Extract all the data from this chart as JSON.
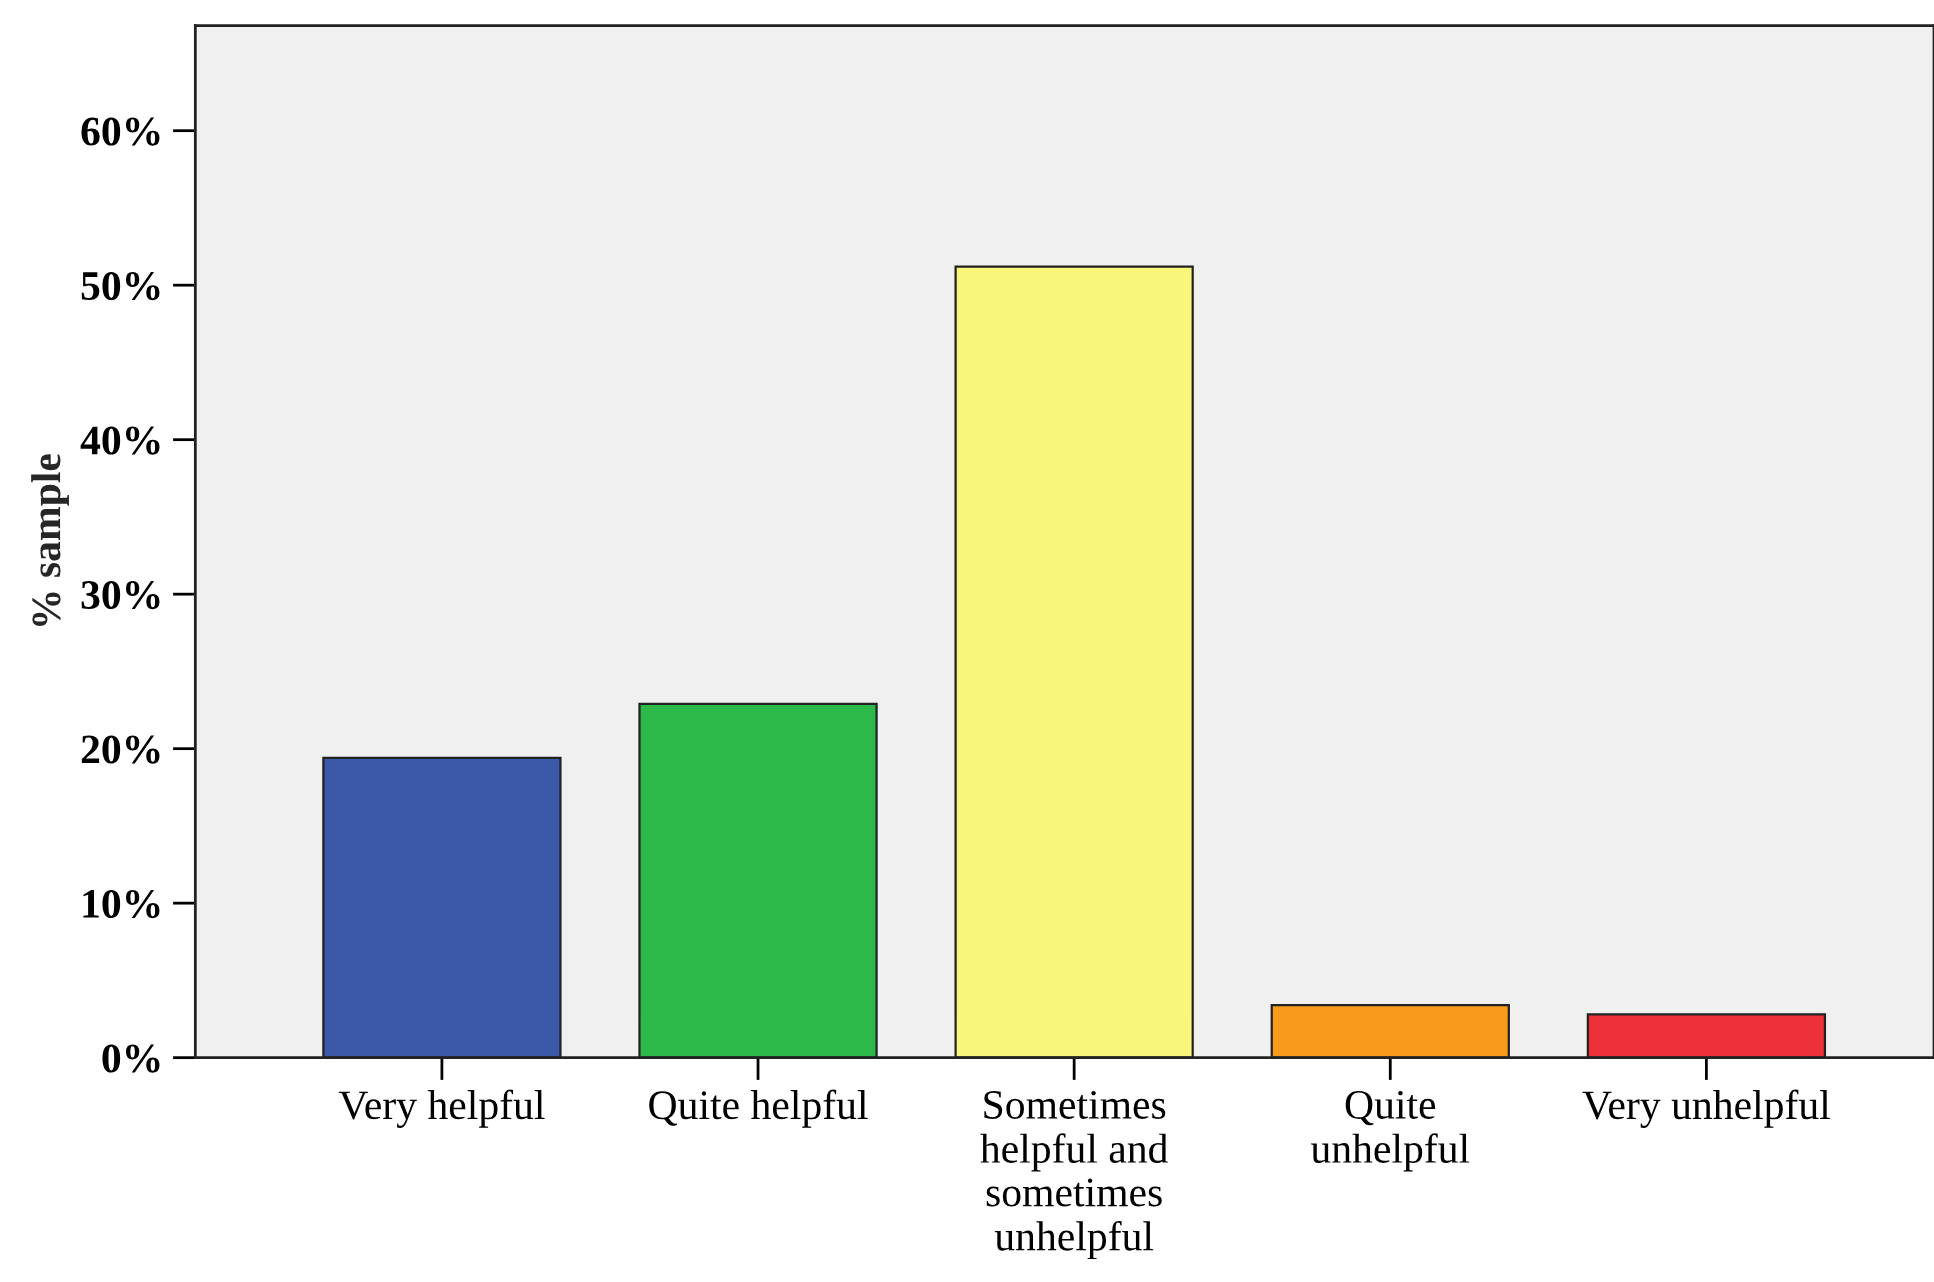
{
  "chart_data": {
    "type": "bar",
    "ylabel": "% sample",
    "categories": [
      "Very helpful",
      "Quite helpful",
      "Sometimes helpful and sometimes unhelpful",
      "Quite unhelpful",
      "Very unhelpful"
    ],
    "values": [
      19.4,
      22.9,
      51.2,
      3.4,
      2.8
    ],
    "colors": [
      "#3c58a8",
      "#2db84a",
      "#f8f77a",
      "#f89a1c",
      "#ee3039"
    ],
    "ylim": [
      0,
      66.8
    ],
    "yticks": [
      {
        "value": 0,
        "label": "0%"
      },
      {
        "value": 10,
        "label": "10%"
      },
      {
        "value": 20,
        "label": "20%"
      },
      {
        "value": 30,
        "label": "30%"
      },
      {
        "value": 40,
        "label": "40%"
      },
      {
        "value": 50,
        "label": "50%"
      },
      {
        "value": 60,
        "label": "60%"
      }
    ],
    "grid": false,
    "legend": false
  }
}
